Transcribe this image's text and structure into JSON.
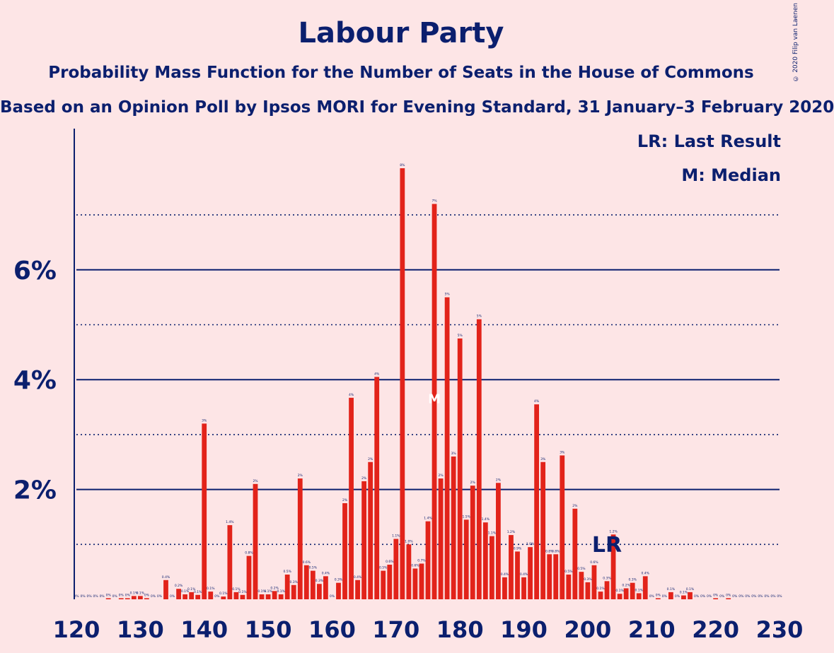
{
  "title": "Labour Party",
  "subtitle": "Probability Mass Function for the Number of Seats in the House of Commons",
  "subtitle2": "Based on an Opinion Poll by Ipsos MORI for Evening Standard, 31 January–3 February 2020",
  "copyright": "© 2020 Filip van Laenen",
  "legend": {
    "last_result": "LR: Last Result",
    "median": "M: Median"
  },
  "markers": {
    "last_result_label": "LR",
    "last_result_seat": 203,
    "median_label": "M",
    "median_seat": 176
  },
  "colors": {
    "bar": "#e2231a",
    "axis": "#0b1f6e",
    "background": "#fde5e6"
  },
  "chart_data": {
    "type": "bar",
    "xlabel": "",
    "ylabel": "",
    "xlim": [
      120,
      230
    ],
    "ylim": [
      0,
      8.5
    ],
    "x_ticks": [
      "120",
      "130",
      "140",
      "150",
      "160",
      "170",
      "180",
      "190",
      "200",
      "210",
      "220",
      "230"
    ],
    "y_ticks": [
      "2%",
      "4%",
      "6%"
    ],
    "y_tick_values": [
      2,
      4,
      6
    ],
    "y_dotted_values": [
      1,
      3,
      5,
      7
    ],
    "grid": true,
    "seats": [
      120,
      121,
      122,
      123,
      124,
      125,
      126,
      127,
      128,
      129,
      130,
      131,
      132,
      133,
      134,
      135,
      136,
      137,
      138,
      139,
      140,
      141,
      142,
      143,
      144,
      145,
      146,
      147,
      148,
      149,
      150,
      151,
      152,
      153,
      154,
      155,
      156,
      157,
      158,
      159,
      160,
      161,
      162,
      163,
      164,
      165,
      166,
      167,
      168,
      169,
      170,
      171,
      172,
      173,
      174,
      175,
      176,
      177,
      178,
      179,
      180,
      181,
      182,
      183,
      184,
      185,
      186,
      187,
      188,
      189,
      190,
      191,
      192,
      193,
      194,
      195,
      196,
      197,
      198,
      199,
      200,
      201,
      202,
      203,
      204,
      205,
      206,
      207,
      208,
      209,
      210,
      211,
      212,
      213,
      214,
      215,
      216,
      217,
      218,
      219,
      220,
      221,
      222,
      223,
      224,
      225,
      226,
      227,
      228,
      229,
      230
    ],
    "values": [
      0,
      0,
      0,
      0,
      0,
      0.02,
      0,
      0.02,
      0.02,
      0.06,
      0.06,
      0.02,
      0,
      0,
      0.35,
      0,
      0.19,
      0.09,
      0.13,
      0.08,
      3.2,
      0.14,
      0,
      0.05,
      1.35,
      0.13,
      0.08,
      0.79,
      2.1,
      0.09,
      0.09,
      0.15,
      0.09,
      0.45,
      0.26,
      2.2,
      0.62,
      0.52,
      0.28,
      0.42,
      0,
      0.3,
      1.75,
      3.67,
      0.35,
      2.15,
      2.5,
      4.05,
      0.52,
      0.63,
      1.1,
      7.85,
      1.0,
      0.56,
      0.65,
      1.42,
      7.2,
      2.2,
      5.5,
      2.6,
      4.75,
      1.45,
      2.07,
      5.1,
      1.4,
      1.15,
      2.12,
      0.4,
      1.17,
      0.87,
      0.4,
      0.95,
      3.55,
      2.5,
      0.82,
      0.82,
      2.62,
      0.45,
      1.65,
      0.5,
      0.31,
      0.62,
      0.14,
      0.33,
      1.18,
      0.1,
      0.2,
      0.3,
      0.11,
      0.42,
      0,
      0.02,
      0,
      0.13,
      0,
      0.07,
      0.13,
      0,
      0,
      0,
      0.02,
      0,
      0.02,
      0,
      0,
      0,
      0,
      0,
      0,
      0,
      0
    ],
    "labels": [
      "0%",
      "0%",
      "0%",
      "0%",
      "0%",
      "0%",
      "0%",
      "0%",
      "0%",
      "0.1%",
      "0.1%",
      "0%",
      "0%",
      "0%",
      "0.4%",
      "0%",
      "0.2%",
      "0.1%",
      "0.1%",
      "0.1%",
      "3%",
      "0.1%",
      "0%",
      "0.1%",
      "1.4%",
      "0.1%",
      "0.1%",
      "0.8%",
      "2%",
      "0.1%",
      "0.1%",
      "0.2%",
      "0.1%",
      "0.5%",
      "0.3%",
      "2%",
      "0.6%",
      "0.5%",
      "0.3%",
      "0.4%",
      "0%",
      "0.3%",
      "2%",
      "4%",
      "0.4%",
      "2%",
      "2%",
      "4%",
      "0.5%",
      "0.6%",
      "1.1%",
      "8%",
      "1.0%",
      "0.6%",
      "0.7%",
      "1.4%",
      "7%",
      "2%",
      "5%",
      "3%",
      "5%",
      "1.5%",
      "2%",
      "5%",
      "1.4%",
      "1.1%",
      "2%",
      "0.4%",
      "1.2%",
      "0.9%",
      "0.4%",
      "1.0%",
      "4%",
      "3%",
      "0.8%",
      "0.8%",
      "3%",
      "0.5%",
      "2%",
      "0.5%",
      "0.3%",
      "0.6%",
      "0.1%",
      "0.3%",
      "1.2%",
      "0.1%",
      "0.2%",
      "0.3%",
      "0.1%",
      "0.4%",
      "0%",
      "0%",
      "0%",
      "0.1%",
      "0%",
      "0.1%",
      "0.1%",
      "0%",
      "0%",
      "0%",
      "0%",
      "0%",
      "0%",
      "0%",
      "0%",
      "0%",
      "0%",
      "0%",
      "0%",
      "0%",
      "0%"
    ]
  }
}
